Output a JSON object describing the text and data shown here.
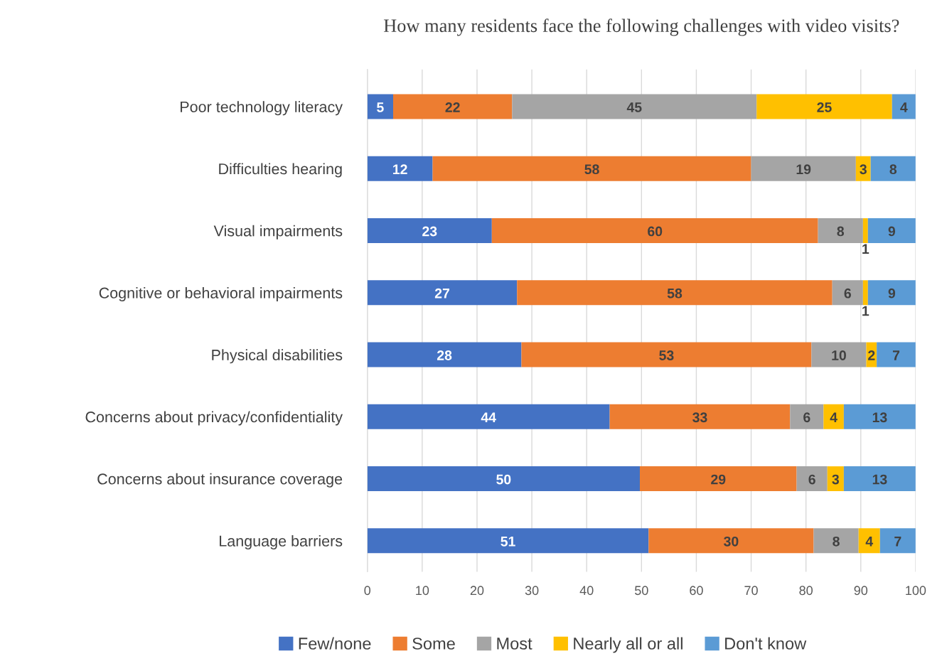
{
  "chart_data": {
    "type": "bar",
    "orientation": "horizontal",
    "stacked": true,
    "title": "How many residents face the following challenges with video visits?",
    "categories": [
      "Poor technology literacy",
      "Difficulties hearing",
      "Visual impairments",
      "Cognitive or behavioral impairments",
      "Physical disabilities",
      "Concerns about privacy/confidentiality",
      "Concerns about insurance coverage",
      "Language barriers"
    ],
    "series": [
      {
        "name": "Few/none",
        "color": "#4472c4",
        "values": [
          4.7,
          11.9,
          22.7,
          27.3,
          28.1,
          44.2,
          49.7,
          51.3
        ],
        "value_labels": [
          "5",
          "12",
          "23",
          "27",
          "28",
          "44",
          "50",
          "51"
        ]
      },
      {
        "name": "Some",
        "color": "#ed7d31",
        "values": [
          21.7,
          58.1,
          59.5,
          57.5,
          52.9,
          32.9,
          28.6,
          30.1
        ],
        "value_labels": [
          "22",
          "58",
          "60",
          "58",
          "53",
          "33",
          "29",
          "30"
        ]
      },
      {
        "name": "Most",
        "color": "#a5a5a5",
        "values": [
          44.6,
          19.1,
          8.2,
          5.6,
          10.0,
          6.1,
          5.6,
          8.2
        ],
        "value_labels": [
          "45",
          "19",
          "8",
          "6",
          "10",
          "6",
          "6",
          "8"
        ]
      },
      {
        "name": "Nearly all or all",
        "color": "#ffc000",
        "values": [
          24.7,
          2.7,
          0.9,
          0.9,
          1.9,
          3.7,
          3.0,
          3.9
        ],
        "value_labels": [
          "25",
          "3",
          "1",
          "1",
          "2",
          "4",
          "3",
          "4"
        ]
      },
      {
        "name": "Don't know",
        "color": "#5b9bd5",
        "values": [
          4.3,
          8.2,
          8.7,
          8.7,
          7.1,
          13.1,
          13.1,
          6.5
        ],
        "value_labels": [
          "4",
          "8",
          "9",
          "9",
          "7",
          "13",
          "13",
          "7"
        ]
      }
    ],
    "xlim": [
      0,
      100
    ],
    "xticks": [
      0,
      10,
      20,
      30,
      40,
      50,
      60,
      70,
      80,
      90,
      100
    ],
    "grid": "x",
    "legend": "bottom"
  }
}
